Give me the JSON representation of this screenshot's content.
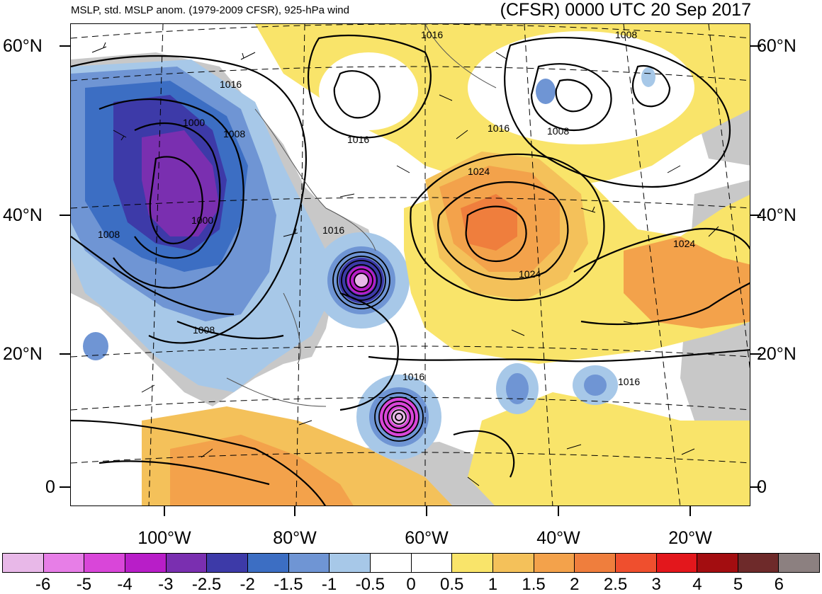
{
  "header": {
    "left_title": "MSLP, std. MSLP anom. (1979-2009 CFSR), 925-hPa wind",
    "right_title": "(CFSR) 0000 UTC 20 Sep 2017"
  },
  "axes": {
    "lat_labels": [
      "60°N",
      "40°N",
      "20°N",
      "0"
    ],
    "lon_labels": [
      "100°W",
      "80°W",
      "60°W",
      "40°W",
      "20°W"
    ]
  },
  "contour_labels": [
    "1016",
    "1008",
    "1016",
    "1000",
    "1008",
    "1016",
    "1016",
    "1024",
    "1008",
    "1016",
    "1008",
    "1000",
    "1024",
    "1024",
    "1008",
    "1016",
    "1016"
  ],
  "colorbar": {
    "colors": [
      "#e8b8e8",
      "#e77ee7",
      "#d946d9",
      "#b81ec8",
      "#7a2fb0",
      "#3d3aa8",
      "#3c6ec3",
      "#6f95d4",
      "#a7c8e8",
      "#ffffff",
      "#ffffff",
      "#f9e46a",
      "#f4c15a",
      "#f3a24b",
      "#ef7e3d",
      "#ef4f2e",
      "#e3171c",
      "#a30d10",
      "#6e2a2a",
      "#8c8080"
    ],
    "tick_labels": [
      "-6",
      "-5",
      "-4",
      "-3",
      "-2.5",
      "-2",
      "-1.5",
      "-1",
      "-0.5",
      "0",
      "0.5",
      "1",
      "1.5",
      "2",
      "2.5",
      "3",
      "4",
      "5",
      "6"
    ]
  }
}
